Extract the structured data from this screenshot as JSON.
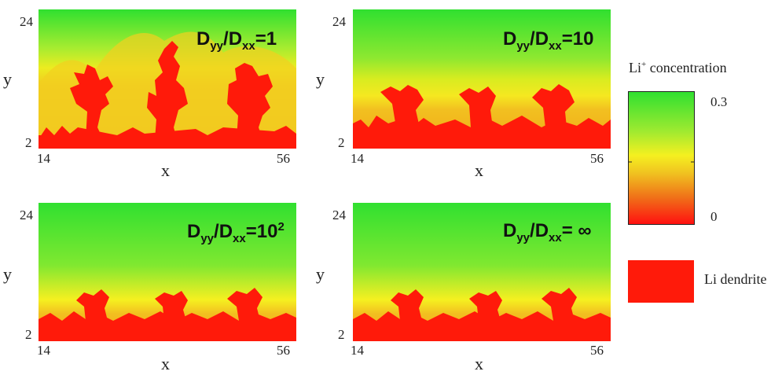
{
  "panels": [
    {
      "id": "p1",
      "title_main": "D",
      "sub1": "yy",
      "sep": "/D",
      "sub2": "xx",
      "ratio": "=1",
      "ratio_sup": "",
      "y_label": "y",
      "x_label": "x",
      "y_top": "24",
      "y_bottom": "2",
      "x_left": "14",
      "x_right": "56"
    },
    {
      "id": "p2",
      "title_main": "D",
      "sub1": "yy",
      "sep": "/D",
      "sub2": "xx",
      "ratio": "=10",
      "ratio_sup": "",
      "y_label": "y",
      "x_label": "x",
      "y_top": "24",
      "y_bottom": "2",
      "x_left": "14",
      "x_right": "56"
    },
    {
      "id": "p3",
      "title_main": "D",
      "sub1": "yy",
      "sep": "/D",
      "sub2": "xx",
      "ratio": "=10",
      "ratio_sup": "2",
      "y_label": "y",
      "x_label": "x",
      "y_top": "24",
      "y_bottom": "2",
      "x_left": "14",
      "x_right": "56"
    },
    {
      "id": "p4",
      "title_main": "D",
      "sub1": "yy",
      "sep": "/D",
      "sub2": "xx",
      "ratio": "= ∞",
      "ratio_sup": "",
      "y_label": "y",
      "x_label": "x",
      "y_top": "24",
      "y_bottom": "2",
      "x_left": "14",
      "x_right": "56"
    }
  ],
  "legend": {
    "title_prefix": "Li",
    "title_sup": "+",
    "title_suffix": " concentration",
    "max": "0.3",
    "min": "0",
    "dendrite_label": "Li dendrite"
  },
  "colors": {
    "dendrite": "#ff1a0a",
    "green": "#33e633",
    "yellow": "#f5f020",
    "orange": "#f0b020",
    "red": "#ff2010"
  }
}
